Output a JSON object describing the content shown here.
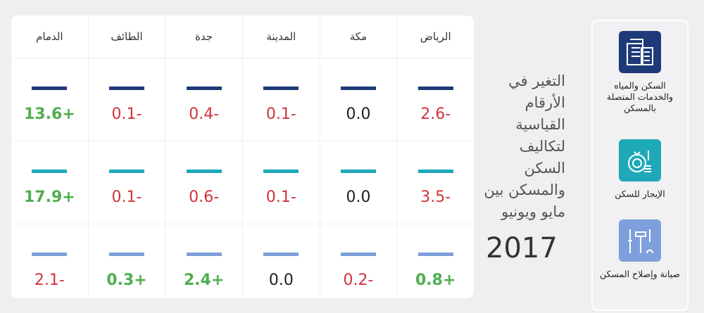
{
  "columns": [
    "الرياض",
    "مكة",
    "المدينة",
    "جدة",
    "الطائف",
    "الدمام"
  ],
  "rows": [
    {
      "category": "السكن والمياه والخدمات المتصلة بالمسكن",
      "color": "#1e3a78",
      "values": [
        "-2.6",
        "0.0",
        "-0.1",
        "-0.4",
        "-0.1",
        "+13.6"
      ]
    },
    {
      "category": "الإيجار للسكن",
      "color": "#1fa8b8",
      "values": [
        "-3.5",
        "0.0",
        "-0.1",
        "-0.6",
        "-0.1",
        "+17.9"
      ]
    },
    {
      "category": "صيانة وإصلاح المسكن",
      "color": "#7e9fdc",
      "values": [
        "+0.8",
        "-0.2",
        "0.0",
        "+2.4",
        "+0.3",
        "-2.1"
      ]
    }
  ],
  "title": "التغير في الأرقام القياسية لتكاليف السكن والمسكن بين مايو ويونيو",
  "year": "2017",
  "icons": [
    "building-icon",
    "money-bag-icon",
    "tools-icon"
  ],
  "status_colors": {
    "negative": "#d0343a",
    "positive": "#4fae4f",
    "zero": "#222222"
  }
}
